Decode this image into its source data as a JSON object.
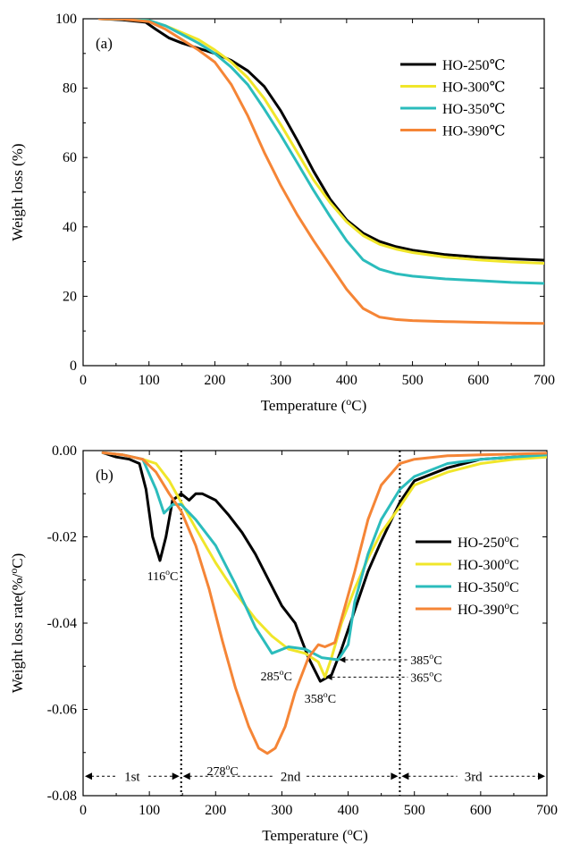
{
  "chart_data": [
    {
      "type": "line",
      "panel_label": "(a)",
      "xlabel": "Temperature (",
      "xlabel_unit": "C)",
      "xlabel_sup": "o",
      "ylabel": "Weight loss (%)",
      "xlim": [
        0,
        700
      ],
      "ylim": [
        0,
        100
      ],
      "xticks": [
        "0",
        "100",
        "200",
        "300",
        "400",
        "500",
        "600",
        "700"
      ],
      "yticks": [
        "0",
        "20",
        "40",
        "60",
        "80",
        "100"
      ],
      "legend_position": "top-right",
      "grid": false,
      "series": [
        {
          "name": "HO-250℃",
          "color": "#000000",
          "x": [
            25,
            60,
            95,
            110,
            130,
            150,
            175,
            200,
            225,
            250,
            275,
            300,
            325,
            350,
            375,
            400,
            425,
            450,
            475,
            500,
            550,
            600,
            650,
            700
          ],
          "y": [
            100,
            99.7,
            99,
            97,
            94.5,
            93,
            91.5,
            90,
            88,
            85,
            80.5,
            73.5,
            65,
            56,
            48,
            42,
            38.2,
            35.8,
            34.3,
            33.3,
            32,
            31.3,
            30.8,
            30.4
          ]
        },
        {
          "name": "HO-300℃",
          "color": "#f0e62a",
          "x": [
            25,
            60,
            100,
            125,
            150,
            175,
            200,
            225,
            250,
            275,
            300,
            325,
            350,
            375,
            400,
            425,
            450,
            475,
            500,
            550,
            600,
            650,
            700
          ],
          "y": [
            100,
            99.9,
            99.5,
            98,
            96,
            94,
            91,
            87.5,
            83,
            77,
            69.5,
            61.5,
            53.5,
            47,
            41.5,
            37.5,
            35,
            33.6,
            32.6,
            31.3,
            30.5,
            29.9,
            29.5
          ]
        },
        {
          "name": "HO-350℃",
          "color": "#2bbcbc",
          "x": [
            25,
            60,
            100,
            125,
            150,
            175,
            200,
            225,
            250,
            275,
            300,
            325,
            350,
            375,
            400,
            425,
            450,
            475,
            500,
            550,
            600,
            650,
            700
          ],
          "y": [
            100,
            99.9,
            99.5,
            98,
            95.5,
            93,
            90,
            86,
            81,
            74,
            66.5,
            58.5,
            50.5,
            43,
            36,
            30.5,
            27.8,
            26.5,
            25.8,
            25,
            24.5,
            24,
            23.7
          ]
        },
        {
          "name": "HO-390℃",
          "color": "#f58536",
          "x": [
            25,
            60,
            100,
            125,
            150,
            175,
            200,
            225,
            250,
            275,
            300,
            325,
            350,
            375,
            400,
            425,
            450,
            475,
            500,
            550,
            600,
            650,
            700
          ],
          "y": [
            100,
            99.9,
            99.2,
            97,
            94,
            91,
            87.5,
            81,
            72,
            61.5,
            52,
            43.5,
            36,
            29,
            22,
            16.5,
            14,
            13.3,
            13,
            12.7,
            12.5,
            12.3,
            12.2
          ]
        }
      ]
    },
    {
      "type": "line",
      "panel_label": "(b)",
      "xlabel": "Temperature (",
      "xlabel_unit": "C)",
      "xlabel_sup": "o",
      "ylabel": "Weight loss rate(%/",
      "ylabel_unit": "C)",
      "ylabel_sup": "o",
      "xlim": [
        0,
        700
      ],
      "ylim": [
        -0.08,
        0.0
      ],
      "xticks": [
        "0",
        "100",
        "200",
        "300",
        "400",
        "500",
        "600",
        "700"
      ],
      "yticks": [
        "0.00",
        "-0.02",
        "-0.04",
        "-0.06",
        "-0.08"
      ],
      "legend_position": "center-right",
      "grid": false,
      "stage_boundaries": [
        148,
        478
      ],
      "stages": [
        {
          "label": "1st",
          "from": 0,
          "to": 148
        },
        {
          "label": "2nd",
          "from": 148,
          "to": 478
        },
        {
          "label": "3rd",
          "from": 478,
          "to": 700
        }
      ],
      "annotations": [
        {
          "text": "116",
          "unit": "C",
          "x": 116,
          "y": -0.0255,
          "dx": 3,
          "dy": 22
        },
        {
          "text": "285",
          "unit": "C",
          "x": 285,
          "y": -0.047,
          "dx": 5,
          "dy": 30
        },
        {
          "text": "358",
          "unit": "C",
          "x": 358,
          "y": -0.0535,
          "dx": 0,
          "dy": 24
        },
        {
          "text": "278",
          "unit": "C",
          "x": 278,
          "y": -0.07,
          "dx": -50,
          "dy": 25
        },
        {
          "text": "385",
          "unit": "C",
          "x": 385,
          "y": -0.0485,
          "dx": 0,
          "dy": 0,
          "arrow_to": 490
        },
        {
          "text": "365",
          "unit": "C",
          "x": 365,
          "y": -0.0525,
          "dx": 0,
          "dy": 0,
          "arrow_to": 490
        }
      ],
      "series": [
        {
          "name": "HO-250",
          "unit": "C",
          "color": "#000000",
          "x": [
            30,
            50,
            70,
            85,
            95,
            105,
            116,
            125,
            135,
            148,
            160,
            170,
            180,
            200,
            220,
            240,
            260,
            280,
            300,
            320,
            340,
            358,
            375,
            390,
            410,
            430,
            450,
            478,
            500,
            550,
            600,
            650,
            700
          ],
          "y": [
            -0.0005,
            -0.0015,
            -0.002,
            -0.003,
            -0.009,
            -0.02,
            -0.0255,
            -0.02,
            -0.0115,
            -0.01,
            -0.0115,
            -0.01,
            -0.01,
            -0.0115,
            -0.015,
            -0.019,
            -0.024,
            -0.03,
            -0.036,
            -0.04,
            -0.048,
            -0.0535,
            -0.052,
            -0.046,
            -0.037,
            -0.028,
            -0.021,
            -0.012,
            -0.007,
            -0.004,
            -0.002,
            -0.0015,
            -0.001
          ]
        },
        {
          "name": "HO-300",
          "unit": "C",
          "color": "#f0e62a",
          "x": [
            30,
            60,
            90,
            110,
            130,
            148,
            170,
            200,
            230,
            260,
            285,
            310,
            335,
            355,
            365,
            375,
            390,
            410,
            430,
            450,
            478,
            500,
            550,
            600,
            650,
            700
          ],
          "y": [
            -0.0005,
            -0.001,
            -0.002,
            -0.003,
            -0.007,
            -0.012,
            -0.018,
            -0.026,
            -0.033,
            -0.039,
            -0.043,
            -0.046,
            -0.047,
            -0.049,
            -0.0525,
            -0.048,
            -0.04,
            -0.032,
            -0.025,
            -0.019,
            -0.013,
            -0.008,
            -0.005,
            -0.003,
            -0.002,
            -0.0015
          ]
        },
        {
          "name": "HO-350",
          "unit": "C",
          "color": "#2bbcbc",
          "x": [
            30,
            60,
            90,
            110,
            122,
            135,
            148,
            170,
            200,
            230,
            260,
            285,
            310,
            335,
            360,
            385,
            400,
            410,
            430,
            450,
            478,
            500,
            550,
            600,
            650,
            700
          ],
          "y": [
            -0.0005,
            -0.001,
            -0.002,
            -0.009,
            -0.0145,
            -0.0125,
            -0.0125,
            -0.016,
            -0.022,
            -0.031,
            -0.041,
            -0.047,
            -0.0455,
            -0.046,
            -0.048,
            -0.0485,
            -0.045,
            -0.035,
            -0.024,
            -0.016,
            -0.009,
            -0.006,
            -0.003,
            -0.002,
            -0.0015,
            -0.001
          ]
        },
        {
          "name": "HO-390",
          "unit": "C",
          "color": "#f58536",
          "x": [
            30,
            60,
            90,
            110,
            130,
            148,
            170,
            190,
            210,
            230,
            250,
            265,
            278,
            290,
            305,
            320,
            340,
            355,
            365,
            380,
            390,
            410,
            430,
            450,
            478,
            500,
            550,
            600,
            650,
            700
          ],
          "y": [
            -0.0005,
            -0.001,
            -0.002,
            -0.005,
            -0.01,
            -0.014,
            -0.022,
            -0.032,
            -0.044,
            -0.055,
            -0.064,
            -0.069,
            -0.0702,
            -0.069,
            -0.064,
            -0.056,
            -0.048,
            -0.045,
            -0.0455,
            -0.0445,
            -0.039,
            -0.028,
            -0.016,
            -0.008,
            -0.003,
            -0.002,
            -0.0012,
            -0.001,
            -0.0008,
            -0.0006
          ]
        }
      ]
    }
  ]
}
